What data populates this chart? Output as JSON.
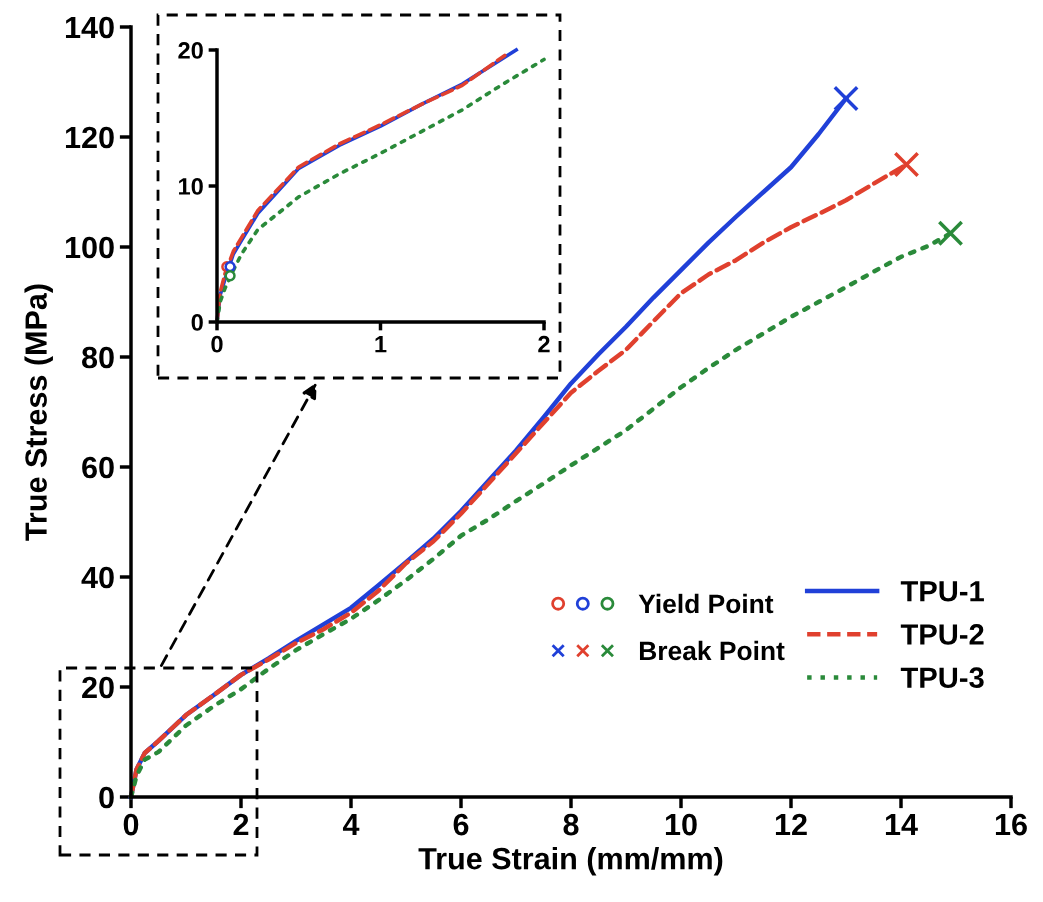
{
  "chart_data": [
    {
      "type": "line",
      "xlabel": "True Strain (mm/mm)",
      "ylabel": "True Stress (MPa)",
      "xlim": [
        0,
        16
      ],
      "ylim": [
        0,
        140
      ],
      "xticks": [
        0,
        2,
        4,
        6,
        8,
        10,
        12,
        14,
        16
      ],
      "yticks": [
        0,
        20,
        40,
        60,
        80,
        100,
        120,
        140
      ],
      "grid": false,
      "legend": "bottom right",
      "series": [
        {
          "name": "TPU-1",
          "color": "#2040d8",
          "line_style": "solid",
          "x": [
            0,
            0.1,
            0.25,
            0.5,
            1,
            1.5,
            2,
            2.5,
            3,
            3.5,
            4,
            4.5,
            5,
            5.5,
            6,
            6.5,
            7,
            7.5,
            8,
            8.5,
            9,
            9.5,
            10,
            10.5,
            11,
            11.5,
            12,
            12.5,
            13
          ],
          "values": [
            0,
            5,
            8,
            10.2,
            14.9,
            18.5,
            22.2,
            25.2,
            28.4,
            31.4,
            34.4,
            38.5,
            42.7,
            47,
            52,
            57.5,
            63,
            69,
            75.2,
            80.5,
            85.5,
            90.8,
            95.8,
            100.8,
            105.5,
            110,
            114.5,
            120.5,
            127
          ]
        },
        {
          "name": "TPU-2",
          "color": "#e0402e",
          "line_style": "dashed",
          "x": [
            0,
            0.1,
            0.25,
            0.5,
            1,
            1.5,
            2,
            2.5,
            3,
            3.5,
            4,
            4.5,
            5,
            5.5,
            6,
            6.5,
            7,
            7.5,
            8,
            8.5,
            9,
            9.5,
            10,
            10.5,
            11,
            11.5,
            12,
            12.5,
            13,
            13.5,
            14.1
          ],
          "values": [
            0,
            5,
            8,
            10.2,
            14.9,
            18.5,
            22.2,
            25,
            28,
            30.5,
            33.5,
            37.5,
            42.5,
            46.5,
            51.5,
            57,
            62.5,
            68,
            73.5,
            77.5,
            81.3,
            86.5,
            91.6,
            95,
            97.6,
            100.8,
            103.6,
            106,
            108.5,
            111.5,
            115
          ]
        },
        {
          "name": "TPU-3",
          "color": "#2a8a3a",
          "line_style": "dotted",
          "x": [
            0,
            0.1,
            0.25,
            0.5,
            1,
            1.5,
            2,
            2.5,
            3,
            3.5,
            4,
            4.5,
            5,
            5.5,
            6,
            6.5,
            7,
            7.5,
            8,
            8.5,
            9,
            9.5,
            10,
            10.5,
            11,
            11.5,
            12,
            12.5,
            13,
            13.5,
            14,
            14.5,
            14.9
          ],
          "values": [
            0,
            3.8,
            6.8,
            8.2,
            13,
            16.5,
            19.6,
            23.3,
            26.7,
            29.6,
            32.4,
            35.8,
            39.4,
            43.3,
            47.5,
            50.5,
            53.8,
            57,
            60.3,
            63.5,
            66.7,
            70.6,
            74.5,
            78,
            81.3,
            84.3,
            87.3,
            90,
            92.7,
            95.5,
            98.2,
            100.2,
            102.5
          ]
        },
        {
          "name": "Break Point",
          "type": "scatter",
          "marker": "cross",
          "x": [
            13,
            14.1,
            14.9
          ],
          "values": [
            127,
            115,
            102.5
          ],
          "colors": [
            "#2040d8",
            "#e0402e",
            "#2a8a3a"
          ]
        }
      ]
    },
    {
      "type": "line",
      "xlim": [
        0,
        2
      ],
      "ylim": [
        0,
        20
      ],
      "xticks": [
        0,
        1,
        2
      ],
      "yticks": [
        0,
        10,
        20
      ],
      "grid": false,
      "series": [
        {
          "color": "#2040d8",
          "line_style": "solid",
          "x": [
            0,
            0.02,
            0.05,
            0.1,
            0.15,
            0.25,
            0.5,
            0.75,
            1,
            1.25,
            1.5,
            1.83
          ],
          "values": [
            0,
            2,
            3.2,
            5,
            6,
            8,
            11.3,
            13,
            14.4,
            16,
            17.5,
            20
          ]
        },
        {
          "color": "#e0402e",
          "line_style": "dashed",
          "x": [
            0,
            0.02,
            0.05,
            0.1,
            0.15,
            0.25,
            0.5,
            0.75,
            1,
            1.25,
            1.5,
            1.76
          ],
          "values": [
            0,
            2.2,
            3.6,
            5.2,
            6.2,
            8.2,
            11.4,
            13.1,
            14.5,
            16,
            17.4,
            19.6
          ]
        },
        {
          "color": "#2a8a3a",
          "line_style": "dotted",
          "x": [
            0,
            0.02,
            0.05,
            0.1,
            0.15,
            0.25,
            0.5,
            0.75,
            1,
            1.25,
            1.5,
            1.75,
            2
          ],
          "values": [
            0,
            1.5,
            2.5,
            3.8,
            5,
            6.8,
            9.2,
            10.9,
            12.4,
            14,
            15.6,
            17.5,
            19.3
          ]
        },
        {
          "name": "Yield Point",
          "type": "scatter",
          "marker": "circle",
          "x": [
            0.06,
            0.08,
            0.08
          ],
          "values": [
            4.07,
            4.07,
            3.4
          ],
          "colors": [
            "#e0402e",
            "#2040d8",
            "#2a8a3a"
          ]
        }
      ]
    }
  ]
}
